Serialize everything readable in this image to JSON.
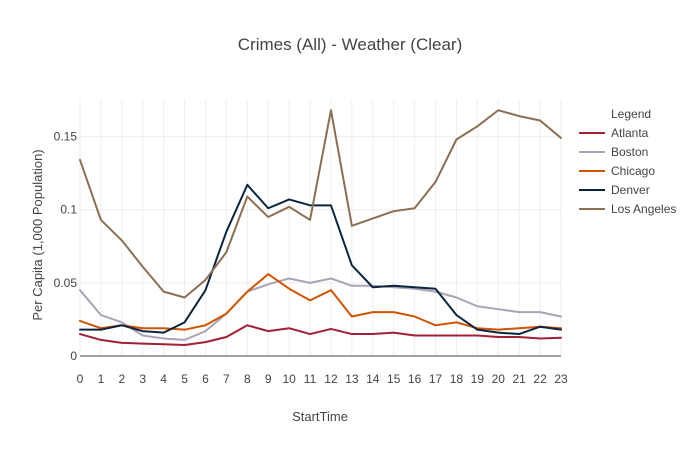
{
  "chart_data": {
    "type": "line",
    "title": "Crimes (All) - Weather (Clear)",
    "xlabel": "StartTime",
    "ylabel": "Per Capita (1,000 Population)",
    "x": [
      0,
      1,
      2,
      3,
      4,
      5,
      6,
      7,
      8,
      9,
      10,
      11,
      12,
      13,
      14,
      15,
      16,
      17,
      18,
      19,
      20,
      21,
      22,
      23
    ],
    "x_tick_labels": [
      "0",
      "1",
      "2",
      "3",
      "4",
      "5",
      "6",
      "7",
      "8",
      "9",
      "10",
      "11",
      "12",
      "13",
      "14",
      "15",
      "16",
      "17",
      "18",
      "19",
      "20",
      "21",
      "22",
      "23"
    ],
    "xlim": [
      0,
      23
    ],
    "ylim": [
      0,
      0.175
    ],
    "y_ticks": [
      0,
      0.05,
      0.1,
      0.15
    ],
    "y_tick_labels": [
      "0",
      "0.05",
      "0.1",
      "0.15"
    ],
    "grid": true,
    "legend": {
      "title": "Legend",
      "position": "right"
    },
    "series": [
      {
        "name": "Atlanta",
        "color": "#a31f34",
        "values": [
          0.015,
          0.011,
          0.009,
          0.0085,
          0.008,
          0.0075,
          0.0095,
          0.013,
          0.021,
          0.017,
          0.019,
          0.015,
          0.0185,
          0.015,
          0.015,
          0.016,
          0.014,
          0.014,
          0.014,
          0.014,
          0.013,
          0.013,
          0.012,
          0.0125
        ]
      },
      {
        "name": "Boston",
        "color": "#a9a3b5",
        "values": [
          0.045,
          0.028,
          0.023,
          0.014,
          0.012,
          0.011,
          0.017,
          0.029,
          0.044,
          0.049,
          0.053,
          0.05,
          0.053,
          0.048,
          0.048,
          0.047,
          0.046,
          0.044,
          0.04,
          0.034,
          0.032,
          0.03,
          0.03,
          0.027
        ]
      },
      {
        "name": "Chicago",
        "color": "#d35400",
        "values": [
          0.024,
          0.019,
          0.021,
          0.019,
          0.019,
          0.018,
          0.021,
          0.029,
          0.044,
          0.056,
          0.046,
          0.038,
          0.045,
          0.027,
          0.03,
          0.03,
          0.027,
          0.021,
          0.023,
          0.019,
          0.018,
          0.019,
          0.02,
          0.019
        ]
      },
      {
        "name": "Denver",
        "color": "#0b2540",
        "values": [
          0.018,
          0.018,
          0.021,
          0.017,
          0.016,
          0.023,
          0.045,
          0.085,
          0.117,
          0.101,
          0.107,
          0.103,
          0.103,
          0.062,
          0.047,
          0.048,
          0.047,
          0.046,
          0.028,
          0.018,
          0.016,
          0.015,
          0.02,
          0.018
        ]
      },
      {
        "name": "Los Angeles",
        "color": "#8b6f52",
        "values": [
          0.134,
          0.093,
          0.079,
          0.061,
          0.044,
          0.04,
          0.052,
          0.071,
          0.109,
          0.095,
          0.102,
          0.093,
          0.168,
          0.089,
          0.094,
          0.099,
          0.101,
          0.119,
          0.148,
          0.157,
          0.168,
          0.164,
          0.161,
          0.149
        ]
      }
    ]
  }
}
